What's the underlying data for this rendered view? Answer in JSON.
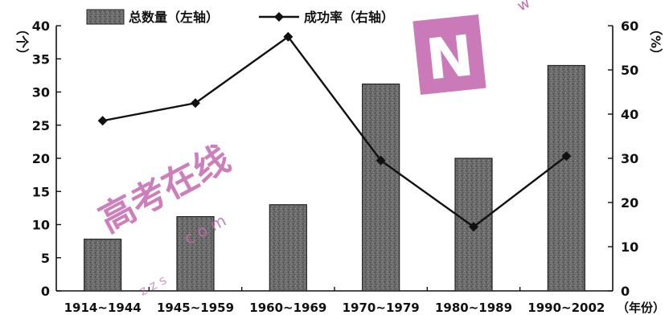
{
  "chart_data": {
    "type": "bar+line",
    "categories": [
      "1914~1944",
      "1945~1959",
      "1960~1969",
      "1970~1979",
      "1980~1989",
      "1990~2002"
    ],
    "series": [
      {
        "name": "总数量（左轴）",
        "type": "bar",
        "axis": "left",
        "values": [
          7.8,
          11.2,
          13,
          31.2,
          20,
          34
        ]
      },
      {
        "name": "成功率（右轴）",
        "type": "line",
        "axis": "right",
        "values": [
          38.5,
          42.5,
          57.5,
          29.5,
          14.5,
          30.5
        ]
      }
    ],
    "left_axis": {
      "label": "（个）",
      "ylim": [
        0,
        40
      ],
      "ticks": [
        0,
        5,
        10,
        15,
        20,
        25,
        30,
        35,
        40
      ]
    },
    "right_axis": {
      "label": "（%）",
      "ylim": [
        0,
        60
      ],
      "ticks": [
        0,
        10,
        20,
        30,
        40,
        50,
        60
      ]
    },
    "xlabel": "（年份）",
    "legend_position": "top"
  },
  "watermark": {
    "text_diag": "w w w",
    "text_cn": "高考在线",
    "text_com": "c o m",
    "text_small": "z z s",
    "logo_letter": "N"
  },
  "colors": {
    "bar": "#6a6a6a",
    "line": "#111111",
    "watermark": "#c46bb0"
  }
}
